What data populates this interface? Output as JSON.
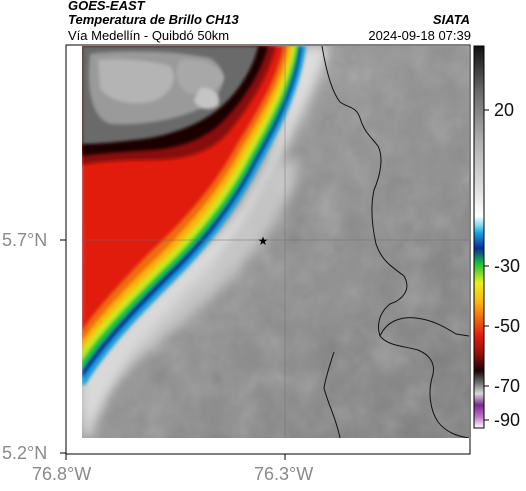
{
  "header": {
    "satellite": "GOES-EAST",
    "product": "Temperatura de Brillo CH13",
    "route": "Vía Medellín - Quibdó 50km",
    "agency": "SIATA",
    "datetime": "2024-09-18 07:39"
  },
  "axes": {
    "lat_labels": [
      "5.7°N",
      "5.2°N"
    ],
    "lon_labels": [
      "76.8°W",
      "76.3°W"
    ]
  },
  "colorbar": {
    "tick_labels": [
      "20",
      "-30",
      "-50",
      "-70",
      "-90"
    ],
    "tick_values": [
      20,
      -30,
      -50,
      -70,
      -90
    ],
    "range": [
      -95,
      40
    ]
  },
  "marker": {
    "icon": "star-icon"
  },
  "colors": {
    "land_gray": "#8e8e8e",
    "cloud_white": "#e4e4e4",
    "cold_red": "#e21a0e",
    "frame": "#000000"
  }
}
